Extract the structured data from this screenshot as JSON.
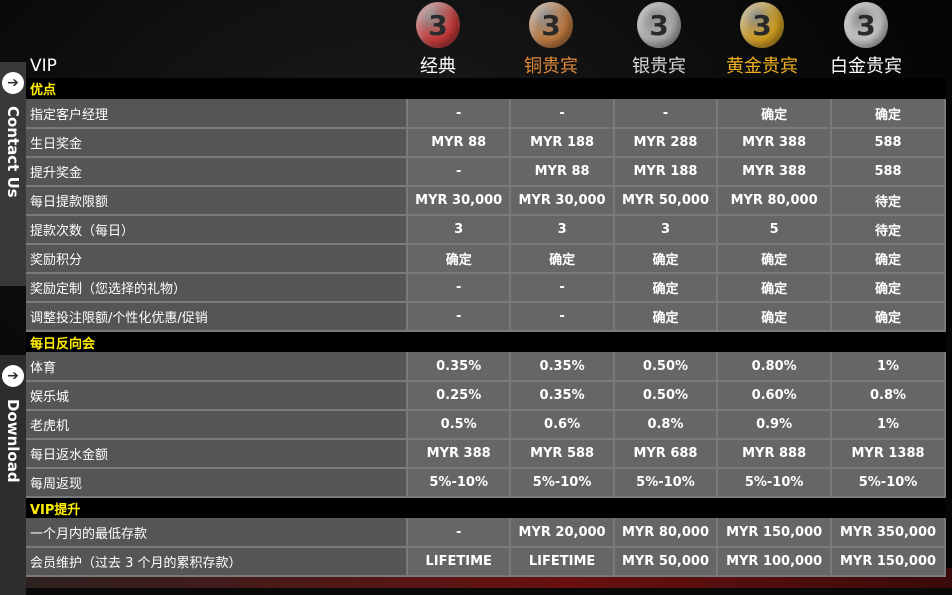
{
  "header": {
    "vip_label": "VIP",
    "tiers": [
      {
        "name": "经典",
        "color": "#ffffff",
        "medal": "#c83a3a",
        "badge": "3"
      },
      {
        "name": "铜贵宾",
        "color": "#e08a3a",
        "medal": "#c07a40",
        "badge": "3"
      },
      {
        "name": "银贵宾",
        "color": "#d8d8d8",
        "medal": "#b0b0b0",
        "badge": "3"
      },
      {
        "name": "黄金贵宾",
        "color": "#f0b020",
        "medal": "#d4a020",
        "badge": "3"
      },
      {
        "name": "白金贵宾",
        "color": "#ffffff",
        "medal": "#c8c8c8",
        "badge": "3"
      }
    ]
  },
  "side": {
    "contact": "Contact Us",
    "download": "Download"
  },
  "sections": [
    {
      "title": "优点",
      "rows": [
        {
          "label": "指定客户经理",
          "values": [
            "-",
            "-",
            "-",
            "确定",
            "确定"
          ]
        },
        {
          "label": "生日奖金",
          "values": [
            "MYR 88",
            "MYR 188",
            "MYR 288",
            "MYR 388",
            "588"
          ]
        },
        {
          "label": "提升奖金",
          "values": [
            "-",
            "MYR 88",
            "MYR 188",
            "MYR 388",
            "588"
          ]
        },
        {
          "label": "每日提款限额",
          "values": [
            "MYR 30,000",
            "MYR 30,000",
            "MYR 50,000",
            "MYR 80,000",
            "待定"
          ]
        },
        {
          "label": "提款次数（每日）",
          "values": [
            "3",
            "3",
            "3",
            "5",
            "待定"
          ]
        },
        {
          "label": "奖励积分",
          "values": [
            "确定",
            "确定",
            "确定",
            "确定",
            "确定"
          ]
        },
        {
          "label": "奖励定制（您选择的礼物）",
          "values": [
            "-",
            "-",
            "确定",
            "确定",
            "确定"
          ]
        },
        {
          "label": "调整投注限额/个性化优惠/促销",
          "values": [
            "-",
            "-",
            "确定",
            "确定",
            "确定"
          ]
        }
      ]
    },
    {
      "title": "每日反向会",
      "rows": [
        {
          "label": "体育",
          "values": [
            "0.35%",
            "0.35%",
            "0.50%",
            "0.80%",
            "1%"
          ]
        },
        {
          "label": "娱乐城",
          "values": [
            "0.25%",
            "0.35%",
            "0.50%",
            "0.60%",
            "0.8%"
          ]
        },
        {
          "label": "老虎机",
          "values": [
            "0.5%",
            "0.6%",
            "0.8%",
            "0.9%",
            "1%"
          ]
        },
        {
          "label": "每日返水金额",
          "values": [
            "MYR 388",
            "MYR 588",
            "MYR 688",
            "MYR 888",
            "MYR 1388"
          ]
        },
        {
          "label": "每周返现",
          "values": [
            "5%-10%",
            "5%-10%",
            "5%-10%",
            "5%-10%",
            "5%-10%"
          ]
        }
      ]
    },
    {
      "title": "VIP提升",
      "rows": [
        {
          "label": "一个月内的最低存款",
          "values": [
            "-",
            "MYR 20,000",
            "MYR 80,000",
            "MYR 150,000",
            "MYR 350,000"
          ]
        },
        {
          "label": "会员维护（过去 3 个月的累积存款）",
          "values": [
            "LIFETIME",
            "LIFETIME",
            "MYR 50,000",
            "MYR 100,000",
            "MYR 150,000"
          ]
        }
      ]
    }
  ]
}
